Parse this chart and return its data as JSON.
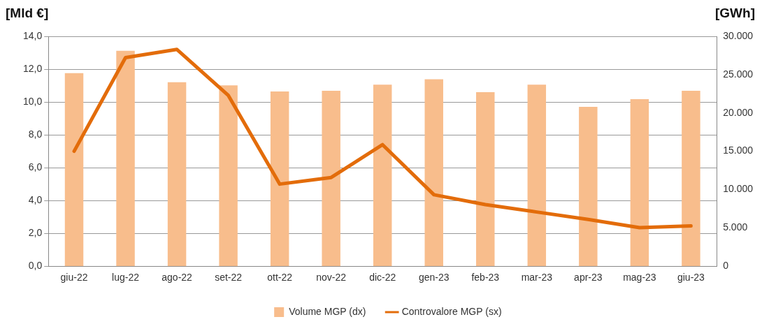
{
  "chart_data": {
    "type": "bar",
    "ylabel": "[Mld €]",
    "y2label": "[GWh]",
    "categories": [
      "giu-22",
      "lug-22",
      "ago-22",
      "set-22",
      "ott-22",
      "nov-22",
      "dic-22",
      "gen-23",
      "feb-23",
      "mar-23",
      "apr-23",
      "mag-23",
      "giu-23"
    ],
    "series": [
      {
        "name": "Volume MGP (dx)",
        "axis": "y2",
        "color": "#f8bd8c",
        "values": [
          25200,
          28100,
          24000,
          23600,
          22800,
          22900,
          23700,
          24400,
          22700,
          23700,
          20800,
          21800,
          22900
        ]
      },
      {
        "name": "Controvalore MGP (sx)",
        "type": "line",
        "color": "#e36c0a",
        "values": [
          7.0,
          12.7,
          13.2,
          10.4,
          5.0,
          5.4,
          7.4,
          4.35,
          3.75,
          3.3,
          2.85,
          2.35,
          2.45
        ]
      }
    ],
    "ylim": [
      0,
      14
    ],
    "yticks": [
      {
        "value": 0,
        "label": "0,0"
      },
      {
        "value": 2,
        "label": "2,0"
      },
      {
        "value": 4,
        "label": "4,0"
      },
      {
        "value": 6,
        "label": "6,0"
      },
      {
        "value": 8,
        "label": "8,0"
      },
      {
        "value": 10,
        "label": "10,0"
      },
      {
        "value": 12,
        "label": "12,0"
      },
      {
        "value": 14,
        "label": "14,0"
      }
    ],
    "y2lim": [
      0,
      30000
    ],
    "y2ticks": [
      0,
      {
        "value": 5000,
        "label": "5.000"
      },
      {
        "value": 10000,
        "label": "10.000"
      },
      {
        "value": 15000,
        "label": "15.000"
      },
      {
        "value": 20000,
        "label": "20.000"
      },
      {
        "value": 25000,
        "label": "25.000"
      },
      {
        "value": 30000,
        "label": "30.000"
      }
    ],
    "grid": "y",
    "legend": "bottom",
    "marker": "none",
    "line_style": "solid"
  }
}
